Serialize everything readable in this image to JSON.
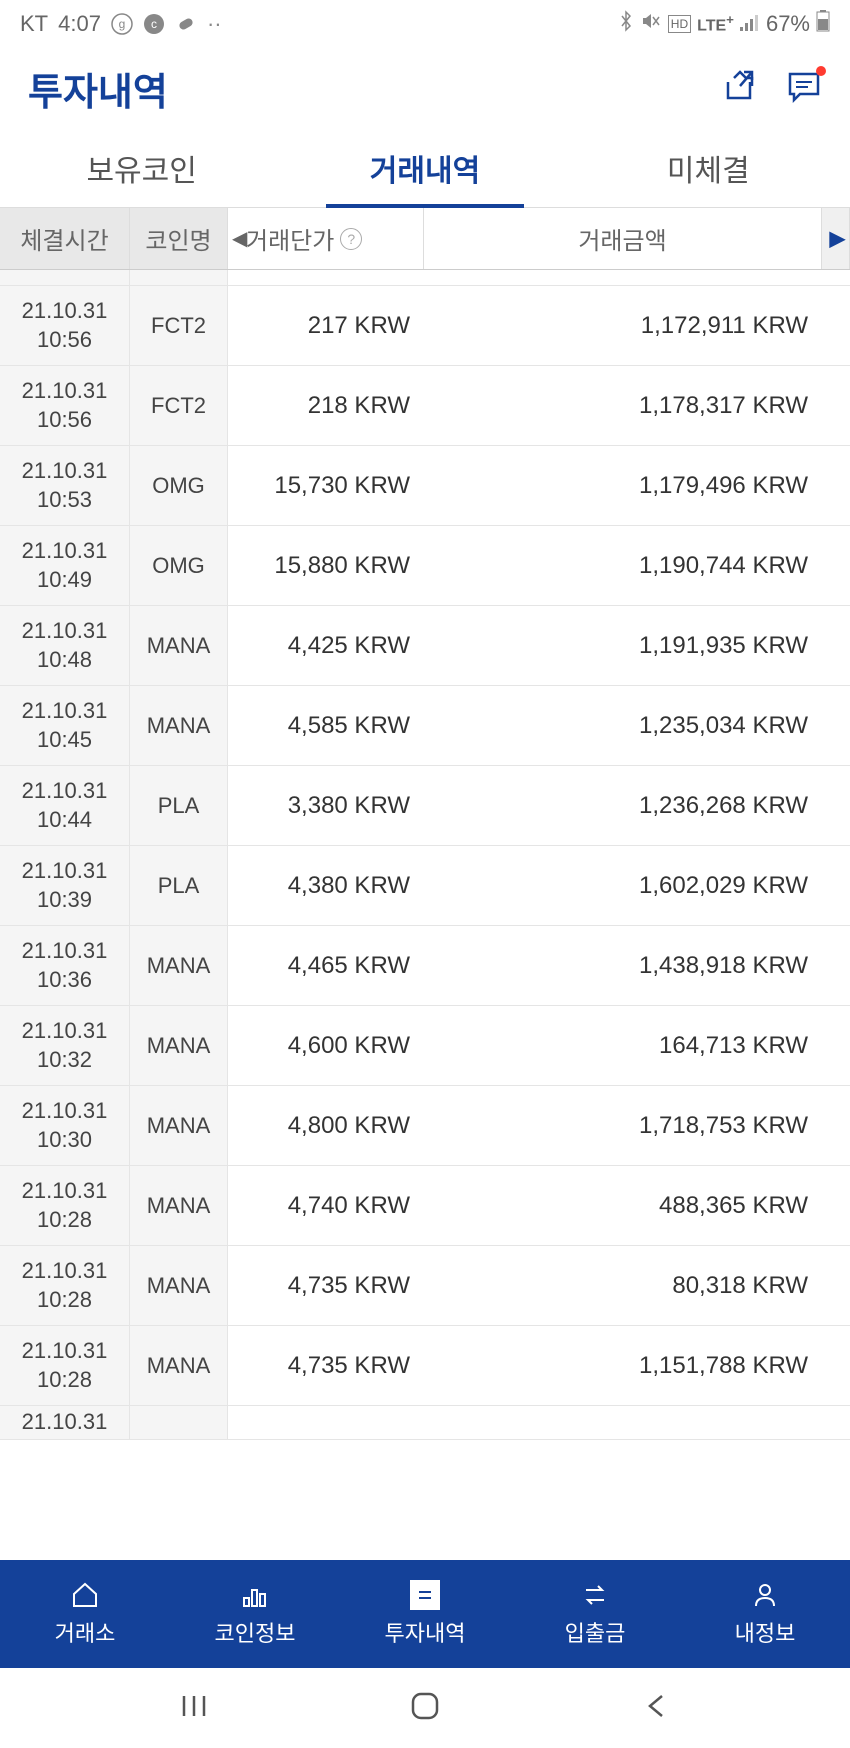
{
  "status": {
    "carrier": "KT",
    "time": "4:07",
    "battery": "67%",
    "network": "LTE",
    "hd": "HD"
  },
  "header": {
    "title": "투자내역"
  },
  "tabs": [
    {
      "label": "보유코인",
      "active": false
    },
    {
      "label": "거래내역",
      "active": true
    },
    {
      "label": "미체결",
      "active": false
    }
  ],
  "columns": {
    "time": "체결시간",
    "coin": "코인명",
    "price": "거래단가",
    "amount": "거래금액"
  },
  "rows": [
    {
      "date": "21.10.31",
      "t": "10:56",
      "coin": "FCT2",
      "price": "217 KRW",
      "amount": "1,172,911 KRW"
    },
    {
      "date": "21.10.31",
      "t": "10:56",
      "coin": "FCT2",
      "price": "218 KRW",
      "amount": "1,178,317 KRW"
    },
    {
      "date": "21.10.31",
      "t": "10:53",
      "coin": "OMG",
      "price": "15,730 KRW",
      "amount": "1,179,496 KRW"
    },
    {
      "date": "21.10.31",
      "t": "10:49",
      "coin": "OMG",
      "price": "15,880 KRW",
      "amount": "1,190,744 KRW"
    },
    {
      "date": "21.10.31",
      "t": "10:48",
      "coin": "MANA",
      "price": "4,425 KRW",
      "amount": "1,191,935 KRW"
    },
    {
      "date": "21.10.31",
      "t": "10:45",
      "coin": "MANA",
      "price": "4,585 KRW",
      "amount": "1,235,034 KRW"
    },
    {
      "date": "21.10.31",
      "t": "10:44",
      "coin": "PLA",
      "price": "3,380 KRW",
      "amount": "1,236,268 KRW"
    },
    {
      "date": "21.10.31",
      "t": "10:39",
      "coin": "PLA",
      "price": "4,380 KRW",
      "amount": "1,602,029 KRW"
    },
    {
      "date": "21.10.31",
      "t": "10:36",
      "coin": "MANA",
      "price": "4,465 KRW",
      "amount": "1,438,918 KRW"
    },
    {
      "date": "21.10.31",
      "t": "10:32",
      "coin": "MANA",
      "price": "4,600 KRW",
      "amount": "164,713 KRW"
    },
    {
      "date": "21.10.31",
      "t": "10:30",
      "coin": "MANA",
      "price": "4,800 KRW",
      "amount": "1,718,753 KRW"
    },
    {
      "date": "21.10.31",
      "t": "10:28",
      "coin": "MANA",
      "price": "4,740 KRW",
      "amount": "488,365 KRW"
    },
    {
      "date": "21.10.31",
      "t": "10:28",
      "coin": "MANA",
      "price": "4,735 KRW",
      "amount": "80,318 KRW"
    },
    {
      "date": "21.10.31",
      "t": "10:28",
      "coin": "MANA",
      "price": "4,735 KRW",
      "amount": "1,151,788 KRW"
    }
  ],
  "partial_row": {
    "date": "21.10.31"
  },
  "nav": [
    {
      "label": "거래소",
      "active": false
    },
    {
      "label": "코인정보",
      "active": false
    },
    {
      "label": "투자내역",
      "active": true
    },
    {
      "label": "입출금",
      "active": false
    },
    {
      "label": "내정보",
      "active": false
    }
  ],
  "plus": "+"
}
